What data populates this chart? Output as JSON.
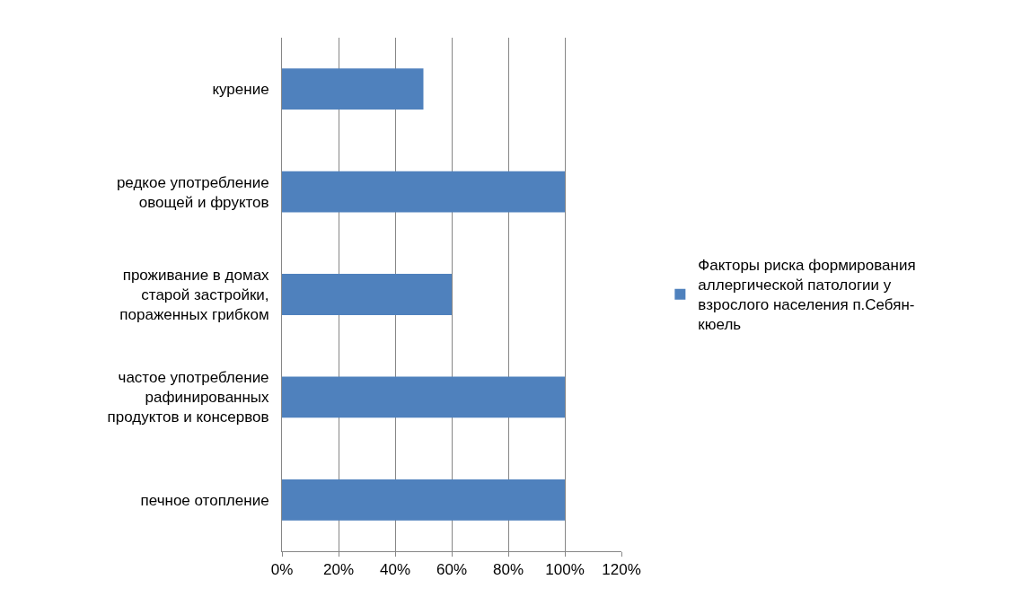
{
  "chart_data": {
    "type": "bar",
    "orientation": "horizontal",
    "categories": [
      "курение",
      "редкое употребление\nовощей и фруктов",
      "проживание в домах\nстарой застройки,\nпораженных грибком",
      "частое употребление\nрафинированных\nпродуктов и консервов",
      "печное отопление"
    ],
    "series": [
      {
        "name": "Факторы риска формирования\nаллергической патологии у\nвзрослого населения п.Себян-\nкюель",
        "color": "#4f81bd",
        "values": [
          50,
          100,
          60,
          100,
          100
        ]
      }
    ],
    "xlim": [
      0,
      120
    ],
    "xticks": [
      {
        "value": 0,
        "label": "0%"
      },
      {
        "value": 20,
        "label": "20%"
      },
      {
        "value": 40,
        "label": "40%"
      },
      {
        "value": 60,
        "label": "60%"
      },
      {
        "value": 80,
        "label": "80%"
      },
      {
        "value": 100,
        "label": "100%"
      },
      {
        "value": 120,
        "label": "120%"
      }
    ],
    "grid": "x",
    "legend": "right"
  }
}
